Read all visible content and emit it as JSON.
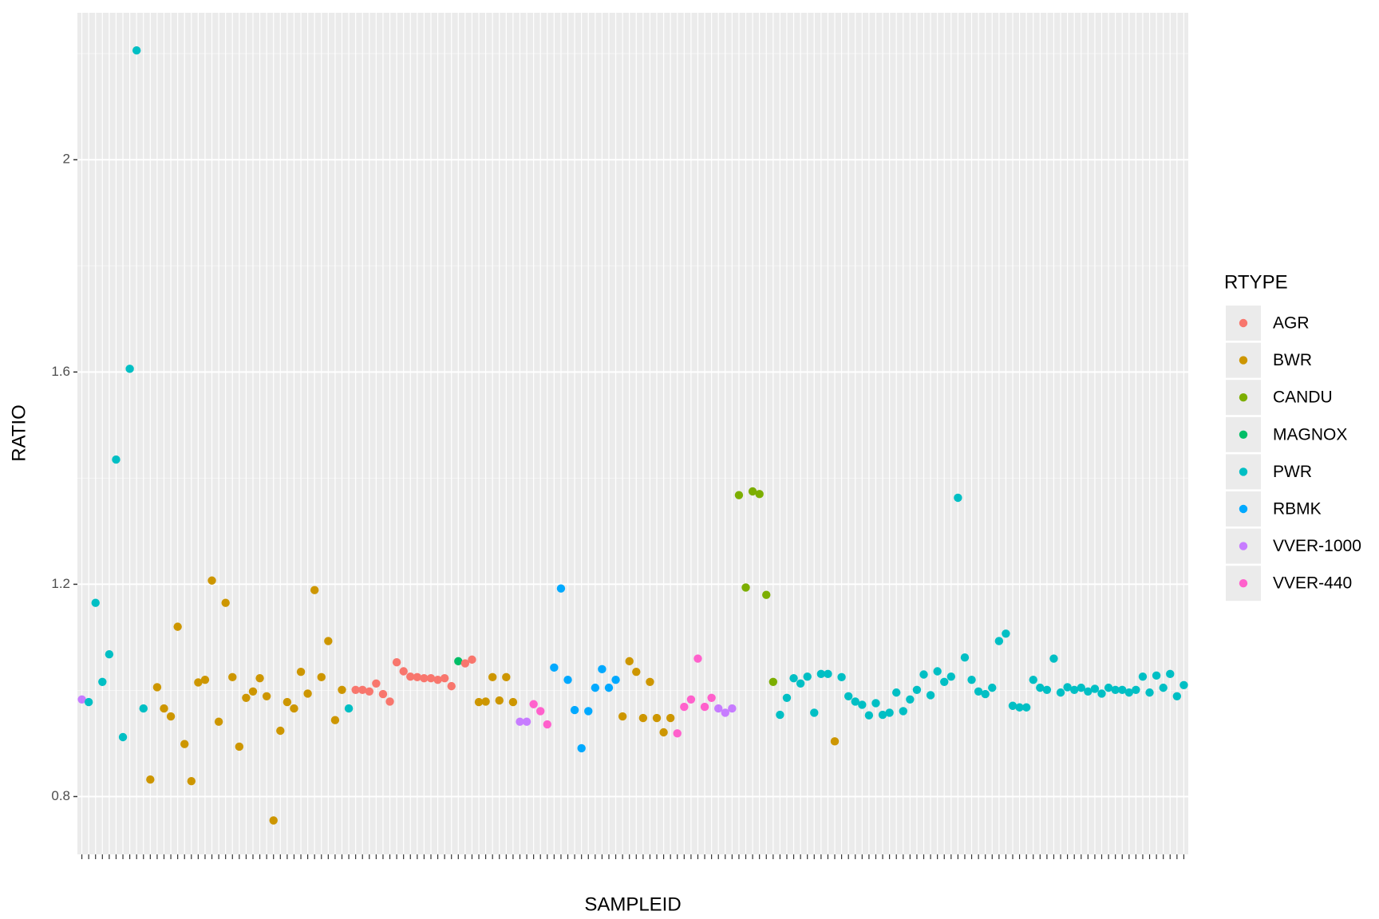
{
  "chart_data": {
    "type": "scatter",
    "x_label": "SAMPLEID",
    "y_label": "RATIO",
    "legend_title": "RTYPE",
    "ylim": [
      0.691,
      2.277
    ],
    "yticks": [
      0.8,
      1.2,
      1.6,
      2.0
    ],
    "grid": true,
    "legend": "right",
    "series": [
      {
        "name": "AGR",
        "color": "#F8766D"
      },
      {
        "name": "BWR",
        "color": "#CD9600"
      },
      {
        "name": "CANDU",
        "color": "#7CAE00"
      },
      {
        "name": "MAGNOX",
        "color": "#00BE67"
      },
      {
        "name": "PWR",
        "color": "#00BFC4"
      },
      {
        "name": "RBMK",
        "color": "#00A9FF"
      },
      {
        "name": "VVER-1000",
        "color": "#C77CFF"
      },
      {
        "name": "VVER-440",
        "color": "#FF61CC"
      }
    ],
    "categories": [
      null,
      null,
      null,
      null,
      null,
      null,
      null,
      null,
      null,
      null,
      null,
      null,
      null,
      null,
      null,
      null,
      null,
      null,
      null,
      null,
      null,
      null,
      null,
      null,
      null,
      null,
      null,
      null,
      null,
      null,
      null,
      null,
      null,
      null,
      null,
      null,
      null,
      null,
      null,
      null,
      null,
      null,
      null,
      null,
      null,
      null,
      null,
      null,
      null,
      null,
      null,
      null,
      null,
      null,
      null,
      null,
      null,
      null,
      null,
      null,
      null,
      null,
      null,
      null,
      null,
      null,
      null,
      null,
      null,
      null,
      null,
      null,
      null,
      null,
      null,
      null,
      null,
      null,
      null,
      null,
      null,
      null,
      null,
      null,
      null,
      null,
      null,
      null,
      null,
      null,
      null,
      null,
      null,
      null,
      null,
      null,
      null,
      null,
      null,
      null,
      null,
      null,
      null,
      null,
      null,
      null,
      null,
      null,
      null,
      null,
      null,
      null,
      null,
      null,
      null,
      null,
      null,
      null,
      null,
      null,
      null,
      null,
      null,
      null,
      null,
      null,
      null,
      null,
      null,
      null,
      null,
      null,
      null,
      null,
      null,
      null,
      null,
      null,
      null,
      null,
      null,
      null,
      null,
      null,
      null,
      null,
      null,
      null,
      null,
      null,
      null,
      null,
      null,
      null,
      null,
      null,
      null,
      null,
      null,
      null,
      null,
      null
    ],
    "values": [
      0.983,
      0.978,
      1.165,
      1.016,
      1.068,
      1.435,
      0.912,
      1.606,
      2.206,
      0.966,
      0.832,
      1.006,
      0.966,
      0.951,
      1.12,
      0.899,
      0.829,
      1.015,
      1.02,
      1.207,
      0.941,
      1.165,
      1.025,
      0.894,
      0.986,
      0.998,
      1.023,
      0.989,
      0.755,
      0.924,
      0.978,
      0.966,
      1.035,
      0.994,
      1.189,
      1.025,
      1.093,
      0.944,
      1.001,
      0.966,
      1.001,
      1.001,
      0.998,
      1.013,
      0.993,
      0.979,
      1.053,
      1.036,
      1.026,
      1.025,
      1.023,
      1.023,
      1.02,
      1.023,
      1.008,
      1.055,
      1.051,
      1.058,
      0.978,
      0.979,
      1.025,
      0.981,
      1.025,
      0.978,
      0.941,
      0.941,
      0.974,
      0.961,
      0.936,
      1.043,
      1.192,
      1.02,
      0.963,
      0.891,
      0.961,
      1.005,
      1.04,
      1.005,
      1.02,
      0.951,
      1.055,
      1.035,
      0.948,
      1.016,
      0.948,
      0.921,
      0.948,
      0.919,
      0.969,
      0.983,
      1.06,
      0.969,
      0.986,
      0.966,
      0.958,
      0.966,
      1.368,
      1.194,
      1.375,
      1.37,
      1.18,
      1.016,
      0.954,
      0.986,
      1.023,
      1.013,
      1.026,
      0.958,
      1.031,
      1.031,
      0.904,
      1.025,
      0.989,
      0.979,
      0.973,
      0.953,
      0.976,
      0.954,
      0.958,
      0.996,
      0.961,
      0.983,
      1.001,
      1.03,
      0.991,
      1.036,
      1.016,
      1.026,
      1.363,
      1.062,
      1.02,
      0.998,
      0.993,
      1.005,
      1.093,
      1.107,
      0.971,
      0.968,
      0.968,
      1.02,
      1.005,
      1.001,
      1.06,
      0.996,
      1.006,
      1.001,
      1.005,
      0.998,
      1.003,
      0.994,
      1.005,
      1.001,
      1.001,
      0.996,
      1.001,
      1.026,
      0.996,
      1.028,
      1.005,
      1.031,
      0.989,
      1.01
    ],
    "groups": [
      "VVER-1000",
      "PWR",
      "PWR",
      "PWR",
      "PWR",
      "PWR",
      "PWR",
      "PWR",
      "PWR",
      "PWR",
      "BWR",
      "BWR",
      "BWR",
      "BWR",
      "BWR",
      "BWR",
      "BWR",
      "BWR",
      "BWR",
      "BWR",
      "BWR",
      "BWR",
      "BWR",
      "BWR",
      "BWR",
      "BWR",
      "BWR",
      "BWR",
      "BWR",
      "BWR",
      "BWR",
      "BWR",
      "BWR",
      "BWR",
      "BWR",
      "BWR",
      "BWR",
      "BWR",
      "BWR",
      "PWR",
      "AGR",
      "AGR",
      "AGR",
      "AGR",
      "AGR",
      "AGR",
      "AGR",
      "AGR",
      "AGR",
      "AGR",
      "AGR",
      "AGR",
      "AGR",
      "AGR",
      "AGR",
      "MAGNOX",
      "AGR",
      "AGR",
      "BWR",
      "BWR",
      "BWR",
      "BWR",
      "BWR",
      "BWR",
      "VVER-1000",
      "VVER-1000",
      "VVER-440",
      "VVER-440",
      "VVER-440",
      "RBMK",
      "RBMK",
      "RBMK",
      "RBMK",
      "RBMK",
      "RBMK",
      "RBMK",
      "RBMK",
      "RBMK",
      "RBMK",
      "BWR",
      "BWR",
      "BWR",
      "BWR",
      "BWR",
      "BWR",
      "BWR",
      "BWR",
      "VVER-440",
      "VVER-440",
      "VVER-440",
      "VVER-440",
      "VVER-440",
      "VVER-440",
      "VVER-1000",
      "VVER-1000",
      "VVER-1000",
      "CANDU",
      "CANDU",
      "CANDU",
      "CANDU",
      "CANDU",
      "CANDU",
      "PWR",
      "PWR",
      "PWR",
      "PWR",
      "PWR",
      "PWR",
      "PWR",
      "PWR",
      "BWR",
      "PWR",
      "PWR",
      "PWR",
      "PWR",
      "PWR",
      "PWR",
      "PWR",
      "PWR",
      "PWR",
      "PWR",
      "PWR",
      "PWR",
      "PWR",
      "PWR",
      "PWR",
      "PWR",
      "PWR",
      "PWR",
      "PWR",
      "PWR",
      "PWR",
      "PWR",
      "PWR",
      "PWR",
      "PWR",
      "PWR",
      "PWR",
      "PWR",
      "PWR",
      "PWR",
      "PWR",
      "PWR",
      "PWR",
      "PWR",
      "PWR",
      "PWR",
      "PWR",
      "PWR",
      "PWR",
      "PWR",
      "PWR",
      "PWR",
      "PWR",
      "PWR",
      "PWR",
      "PWR",
      "PWR",
      "PWR",
      "PWR",
      "PWR",
      "PWR",
      "PWR",
      "PWR"
    ]
  }
}
